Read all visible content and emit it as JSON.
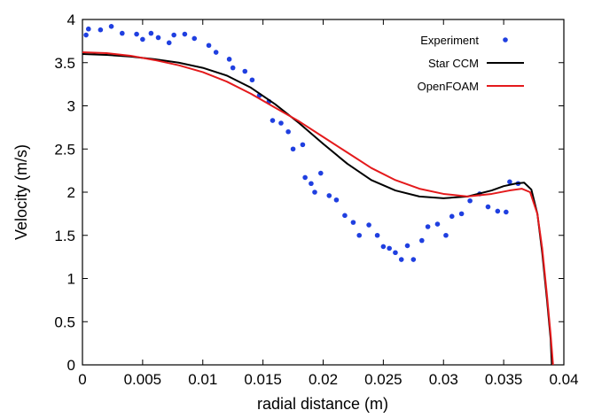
{
  "chart_data": {
    "type": "line",
    "xlabel": "radial distance (m)",
    "ylabel": "Velocity (m/s)",
    "xlim": [
      0,
      0.04
    ],
    "ylim": [
      0,
      4
    ],
    "grid": false,
    "legend_position": "top-right",
    "x_ticks": [
      {
        "value": 0,
        "label": "0"
      },
      {
        "value": 0.005,
        "label": "0.005"
      },
      {
        "value": 0.01,
        "label": "0.01"
      },
      {
        "value": 0.015,
        "label": "0.015"
      },
      {
        "value": 0.02,
        "label": "0.02"
      },
      {
        "value": 0.025,
        "label": "0.025"
      },
      {
        "value": 0.03,
        "label": "0.03"
      },
      {
        "value": 0.035,
        "label": "0.035"
      },
      {
        "value": 0.04,
        "label": "0.04"
      }
    ],
    "y_ticks": [
      {
        "value": 0,
        "label": "0"
      },
      {
        "value": 0.5,
        "label": "0.5"
      },
      {
        "value": 1,
        "label": "1"
      },
      {
        "value": 1.5,
        "label": "1.5"
      },
      {
        "value": 2,
        "label": "2"
      },
      {
        "value": 2.5,
        "label": "2.5"
      },
      {
        "value": 3,
        "label": "3"
      },
      {
        "value": 3.5,
        "label": "3.5"
      },
      {
        "value": 4,
        "label": "4"
      }
    ],
    "series": [
      {
        "name": "Experiment",
        "kind": "scatter",
        "color": "#1f3fe0",
        "points": [
          [
            0.0003,
            3.82
          ],
          [
            0.0005,
            3.89
          ],
          [
            0.0015,
            3.88
          ],
          [
            0.0024,
            3.92
          ],
          [
            0.0033,
            3.84
          ],
          [
            0.0045,
            3.83
          ],
          [
            0.005,
            3.77
          ],
          [
            0.0057,
            3.84
          ],
          [
            0.0063,
            3.79
          ],
          [
            0.0072,
            3.73
          ],
          [
            0.0076,
            3.82
          ],
          [
            0.0085,
            3.83
          ],
          [
            0.0093,
            3.78
          ],
          [
            0.0105,
            3.7
          ],
          [
            0.0111,
            3.62
          ],
          [
            0.0122,
            3.54
          ],
          [
            0.0125,
            3.44
          ],
          [
            0.0135,
            3.4
          ],
          [
            0.0141,
            3.3
          ],
          [
            0.0147,
            3.12
          ],
          [
            0.0155,
            3.05
          ],
          [
            0.0158,
            2.83
          ],
          [
            0.0165,
            2.8
          ],
          [
            0.0171,
            2.7
          ],
          [
            0.0175,
            2.5
          ],
          [
            0.0183,
            2.55
          ],
          [
            0.0185,
            2.17
          ],
          [
            0.019,
            2.1
          ],
          [
            0.0193,
            2.0
          ],
          [
            0.0198,
            2.22
          ],
          [
            0.0205,
            1.96
          ],
          [
            0.0211,
            1.91
          ],
          [
            0.0218,
            1.73
          ],
          [
            0.0225,
            1.65
          ],
          [
            0.023,
            1.5
          ],
          [
            0.0238,
            1.62
          ],
          [
            0.0245,
            1.5
          ],
          [
            0.025,
            1.37
          ],
          [
            0.0255,
            1.35
          ],
          [
            0.026,
            1.3
          ],
          [
            0.0265,
            1.22
          ],
          [
            0.027,
            1.38
          ],
          [
            0.0275,
            1.22
          ],
          [
            0.0282,
            1.44
          ],
          [
            0.0287,
            1.6
          ],
          [
            0.0295,
            1.63
          ],
          [
            0.0302,
            1.5
          ],
          [
            0.0307,
            1.72
          ],
          [
            0.0315,
            1.75
          ],
          [
            0.0322,
            1.9
          ],
          [
            0.033,
            1.98
          ],
          [
            0.0337,
            1.83
          ],
          [
            0.0345,
            1.78
          ],
          [
            0.0352,
            1.77
          ],
          [
            0.0355,
            2.12
          ],
          [
            0.0362,
            2.1
          ]
        ]
      },
      {
        "name": "Star CCM",
        "kind": "line",
        "color": "#000000",
        "points": [
          [
            0,
            3.6
          ],
          [
            0.002,
            3.59
          ],
          [
            0.004,
            3.57
          ],
          [
            0.006,
            3.54
          ],
          [
            0.008,
            3.5
          ],
          [
            0.01,
            3.44
          ],
          [
            0.012,
            3.35
          ],
          [
            0.014,
            3.21
          ],
          [
            0.016,
            3.02
          ],
          [
            0.018,
            2.8
          ],
          [
            0.02,
            2.56
          ],
          [
            0.022,
            2.33
          ],
          [
            0.024,
            2.14
          ],
          [
            0.026,
            2.02
          ],
          [
            0.028,
            1.95
          ],
          [
            0.03,
            1.93
          ],
          [
            0.032,
            1.95
          ],
          [
            0.034,
            2.02
          ],
          [
            0.035,
            2.07
          ],
          [
            0.036,
            2.1
          ],
          [
            0.0367,
            2.11
          ],
          [
            0.0373,
            2.03
          ],
          [
            0.0378,
            1.75
          ],
          [
            0.0382,
            1.3
          ],
          [
            0.0386,
            0.75
          ],
          [
            0.0389,
            0.3
          ],
          [
            0.039,
            0.0
          ]
        ]
      },
      {
        "name": "OpenFOAM",
        "kind": "line",
        "color": "#e41a1c",
        "points": [
          [
            0,
            3.62
          ],
          [
            0.002,
            3.61
          ],
          [
            0.004,
            3.58
          ],
          [
            0.006,
            3.53
          ],
          [
            0.008,
            3.47
          ],
          [
            0.01,
            3.39
          ],
          [
            0.012,
            3.28
          ],
          [
            0.014,
            3.14
          ],
          [
            0.016,
            2.98
          ],
          [
            0.018,
            2.82
          ],
          [
            0.02,
            2.64
          ],
          [
            0.022,
            2.46
          ],
          [
            0.024,
            2.28
          ],
          [
            0.026,
            2.14
          ],
          [
            0.028,
            2.04
          ],
          [
            0.03,
            1.98
          ],
          [
            0.032,
            1.95
          ],
          [
            0.034,
            1.98
          ],
          [
            0.0355,
            2.02
          ],
          [
            0.0365,
            2.04
          ],
          [
            0.0372,
            2.0
          ],
          [
            0.0378,
            1.75
          ],
          [
            0.0382,
            1.35
          ],
          [
            0.0386,
            0.8
          ],
          [
            0.0389,
            0.35
          ],
          [
            0.0391,
            0.0
          ]
        ]
      }
    ]
  }
}
